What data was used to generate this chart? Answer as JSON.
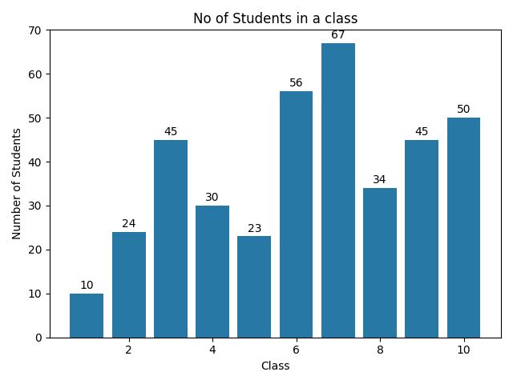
{
  "x": [
    1,
    2,
    3,
    4,
    5,
    6,
    7,
    8,
    9,
    10
  ],
  "values": [
    10,
    24,
    45,
    30,
    23,
    56,
    67,
    34,
    45,
    50
  ],
  "bar_color": "#2878a6",
  "title": "No of Students in a class",
  "xlabel": "Class",
  "ylabel": "Number of Students",
  "ylim": [
    0,
    70
  ],
  "yticks": [
    0,
    10,
    20,
    30,
    40,
    50,
    60,
    70
  ],
  "xticks_shown": [
    2,
    4,
    6,
    8,
    10
  ],
  "title_fontsize": 12,
  "label_fontsize": 10,
  "tick_fontsize": 10,
  "annotation_fontsize": 10,
  "bar_width": 0.8
}
